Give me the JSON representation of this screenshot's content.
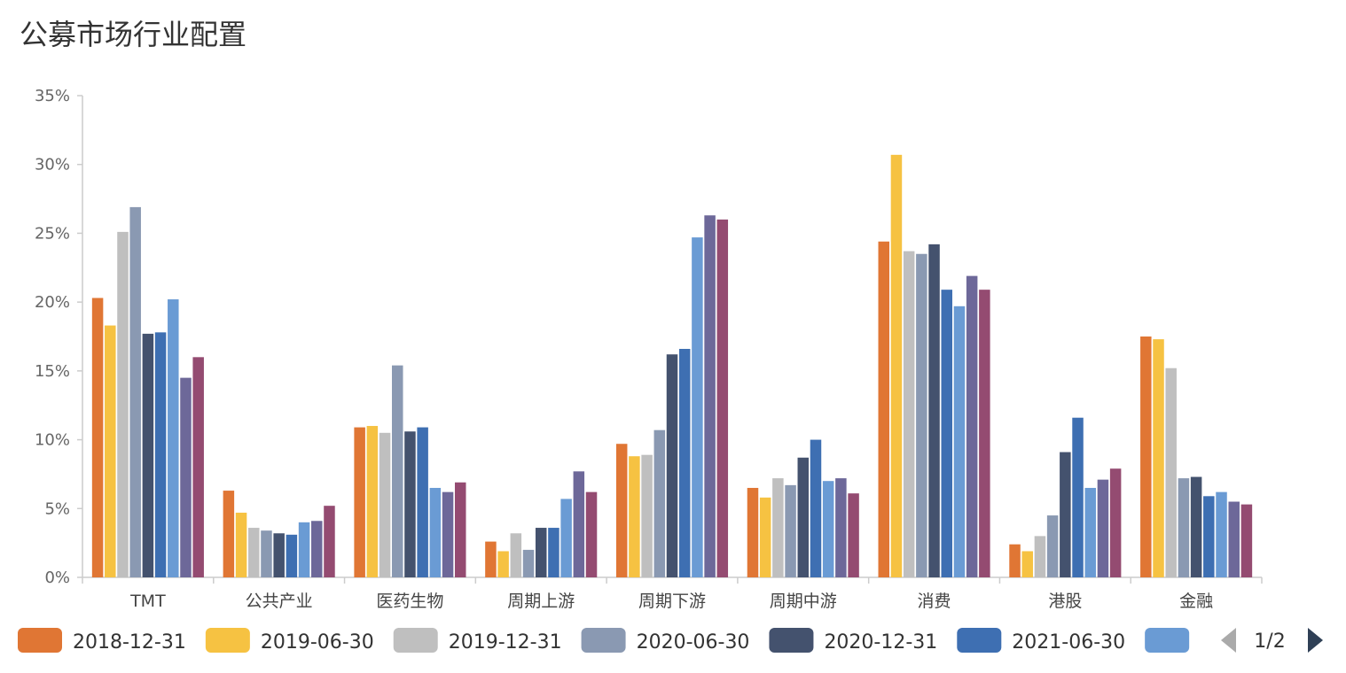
{
  "title": "公募市场行业配置",
  "chart_data": {
    "type": "bar",
    "title": "公募市场行业配置",
    "xlabel": "",
    "ylabel": "",
    "ylim": [
      0,
      35
    ],
    "y_ticks": [
      "0%",
      "5%",
      "10%",
      "15%",
      "20%",
      "25%",
      "30%",
      "35%"
    ],
    "y_tick_values": [
      0,
      5,
      10,
      15,
      20,
      25,
      30,
      35
    ],
    "grid": false,
    "legend_position": "bottom",
    "categories": [
      "TMT",
      "公共产业",
      "医药生物",
      "周期上游",
      "周期下游",
      "周期中游",
      "消费",
      "港股",
      "金融"
    ],
    "series": [
      {
        "name": "2018-12-31",
        "color": "#E07634",
        "values": [
          20.3,
          6.3,
          10.9,
          2.6,
          9.7,
          6.5,
          24.4,
          2.4,
          17.5
        ]
      },
      {
        "name": "2019-06-30",
        "color": "#F6C242",
        "values": [
          18.3,
          4.7,
          11.0,
          1.9,
          8.8,
          5.8,
          30.7,
          1.9,
          17.3
        ]
      },
      {
        "name": "2019-12-31",
        "color": "#BFBFBF",
        "values": [
          25.1,
          3.6,
          10.5,
          3.2,
          8.9,
          7.2,
          23.7,
          3.0,
          15.2
        ]
      },
      {
        "name": "2020-06-30",
        "color": "#8A99B2",
        "values": [
          26.9,
          3.4,
          15.4,
          2.0,
          10.7,
          6.7,
          23.5,
          4.5,
          7.2
        ]
      },
      {
        "name": "2020-12-31",
        "color": "#44526E",
        "values": [
          17.7,
          3.2,
          10.6,
          3.6,
          16.2,
          8.7,
          24.2,
          9.1,
          7.3
        ]
      },
      {
        "name": "2021-06-30",
        "color": "#3E6FB2",
        "values": [
          17.8,
          3.1,
          10.9,
          3.6,
          16.6,
          10.0,
          20.9,
          11.6,
          5.9
        ]
      },
      {
        "name": "",
        "color": "#6A9BD4",
        "values": [
          20.2,
          4.0,
          6.5,
          5.7,
          24.7,
          7.0,
          19.7,
          6.5,
          6.2
        ]
      },
      {
        "name": "",
        "color": "#6D6899",
        "values": [
          14.5,
          4.1,
          6.2,
          7.7,
          26.3,
          7.2,
          21.9,
          7.1,
          5.5
        ]
      },
      {
        "name": "",
        "color": "#944B71",
        "values": [
          16.0,
          5.2,
          6.9,
          6.2,
          26.0,
          6.1,
          20.9,
          7.9,
          5.3
        ]
      }
    ]
  },
  "legend": {
    "items": [
      "2018-12-31",
      "2019-06-30",
      "2019-12-31",
      "2020-06-30",
      "2020-12-31",
      "2021-06-30"
    ],
    "page_label": "1/2"
  }
}
